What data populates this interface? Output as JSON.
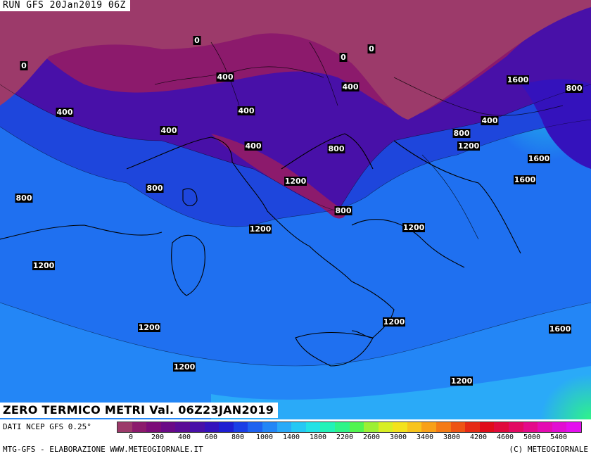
{
  "header": {
    "run_label": "RUN GFS 20Jan2019 06Z"
  },
  "map": {
    "title": "ZERO TERMICO METRI Val. 06Z23JAN2019",
    "contour_labels": [
      "0",
      "0",
      "0",
      "0",
      "400",
      "400",
      "400",
      "400",
      "400",
      "400",
      "400",
      "800",
      "800",
      "800",
      "800",
      "800",
      "1200",
      "1200",
      "1200",
      "1200",
      "1200",
      "1200",
      "1200",
      "1200",
      "1600",
      "1600",
      "1600",
      "1600",
      "1200",
      "800"
    ]
  },
  "footer": {
    "source": "DATI NCEP GFS 0.25°",
    "credit_left": "MTG-GFS - ELABORAZIONE WWW.METEOGIORNALE.IT",
    "credit_right": "(C) METEOGIORNALE"
  },
  "legend": {
    "ticks": [
      "0",
      "200",
      "400",
      "600",
      "800",
      "1000",
      "1400",
      "1800",
      "2200",
      "2600",
      "3000",
      "3400",
      "3800",
      "4200",
      "4600",
      "5000",
      "5400"
    ],
    "colors": [
      "#9c3a6a",
      "#8c1a6c",
      "#7c0c78",
      "#6a0a86",
      "#5a0c96",
      "#4810a8",
      "#3412bc",
      "#1e1ed2",
      "#1a3ee6",
      "#1e62f0",
      "#2386f6",
      "#2aaaf8",
      "#25c8f4",
      "#22e2e6",
      "#22f2b8",
      "#2ef488",
      "#52f450",
      "#9cf034",
      "#d8ee24",
      "#f4e21c",
      "#f8c41c",
      "#f8a018",
      "#f47a16",
      "#ee5414",
      "#e62a14",
      "#e00c1a",
      "#e00a3c",
      "#e20a62",
      "#e40a8a",
      "#e40cb2",
      "#e20ed2",
      "#e410ee"
    ],
    "accent_land": "#9c3a6a",
    "accent_sea_blue": "#1f70f0"
  }
}
